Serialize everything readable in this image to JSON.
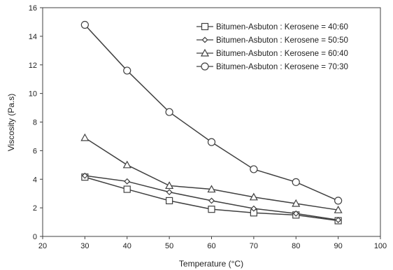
{
  "chart_data": {
    "type": "line",
    "xlabel": "Temperature (°C)",
    "ylabel": "Viscosity (Pa.s)",
    "xlim": [
      20,
      100
    ],
    "ylim": [
      0,
      16
    ],
    "xticks": [
      20,
      30,
      40,
      50,
      60,
      70,
      80,
      90,
      100
    ],
    "yticks": [
      0,
      2,
      4,
      6,
      8,
      10,
      12,
      14,
      16
    ],
    "grid": false,
    "legend_position": "top-right",
    "line_color": "#404040",
    "x": [
      30,
      40,
      50,
      60,
      70,
      80,
      90
    ],
    "series": [
      {
        "name": "Bitumen-Asbuton : Kerosene = 40:60",
        "marker": "square",
        "values": [
          4.15,
          3.3,
          2.5,
          1.9,
          1.65,
          1.5,
          1.1
        ]
      },
      {
        "name": "Bitumen-Asbuton : Kerosene = 50:50",
        "marker": "diamond",
        "values": [
          4.25,
          3.85,
          3.1,
          2.5,
          1.95,
          1.6,
          1.15
        ]
      },
      {
        "name": "Bitumen-Asbuton : Kerosene = 60:40",
        "marker": "triangle",
        "values": [
          6.9,
          5.0,
          3.55,
          3.3,
          2.75,
          2.3,
          1.85
        ]
      },
      {
        "name": "Bitumen-Asbuton : Kerosene = 70:30",
        "marker": "circle",
        "values": [
          14.8,
          11.6,
          8.7,
          6.6,
          4.7,
          3.8,
          2.5
        ]
      }
    ]
  }
}
